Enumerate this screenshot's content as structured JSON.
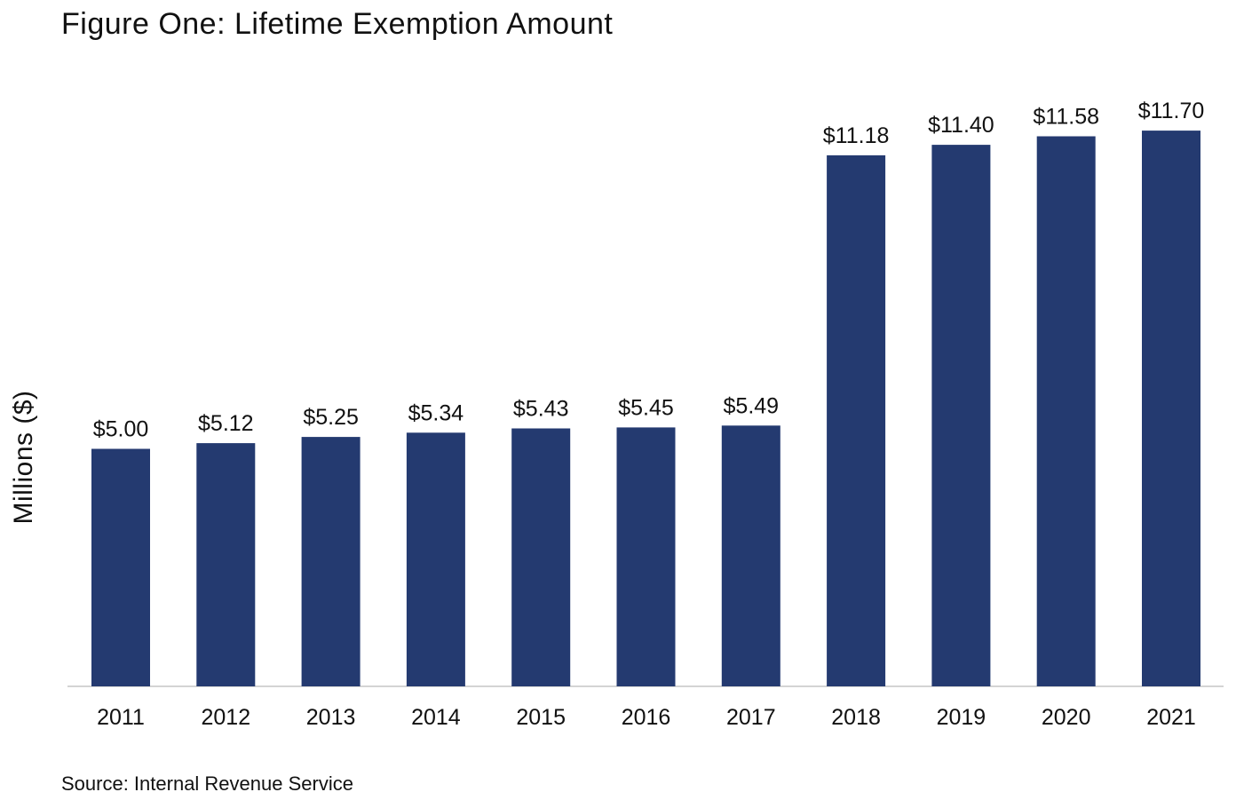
{
  "chart_data": {
    "type": "bar",
    "title": "Figure One: Lifetime Exemption Amount",
    "ylabel": "Millions ($)",
    "xlabel": "",
    "categories": [
      "2011",
      "2012",
      "2013",
      "2014",
      "2015",
      "2016",
      "2017",
      "2018",
      "2019",
      "2020",
      "2021"
    ],
    "values": [
      5.0,
      5.12,
      5.25,
      5.34,
      5.43,
      5.45,
      5.49,
      11.18,
      11.4,
      11.58,
      11.7
    ],
    "data_labels": [
      "$5.00",
      "$5.12",
      "$5.25",
      "$5.34",
      "$5.43",
      "$5.45",
      "$5.49",
      "$11.18",
      "$11.40",
      "$11.58",
      "$11.70"
    ],
    "ylim": [
      0,
      13
    ],
    "grid": false,
    "legend": "none",
    "bar_color": "#243a70",
    "source": "Source: Internal Revenue Service"
  }
}
